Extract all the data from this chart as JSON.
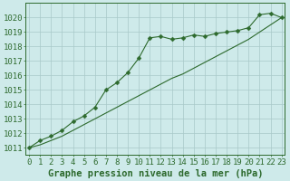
{
  "x": [
    0,
    1,
    2,
    3,
    4,
    5,
    6,
    7,
    8,
    9,
    10,
    11,
    12,
    13,
    14,
    15,
    16,
    17,
    18,
    19,
    20,
    21,
    22,
    23
  ],
  "line1_marked": [
    1011.0,
    1011.5,
    1011.8,
    1012.2,
    1012.8,
    1013.2,
    1013.8,
    1015.0,
    1015.5,
    1016.2,
    1017.2,
    1018.6,
    1018.7,
    1018.5,
    1018.6,
    1018.8,
    1018.7,
    1018.9,
    1019.0,
    1019.1,
    1019.3,
    1020.2,
    1020.3,
    1020.0
  ],
  "line2_linear": [
    1011.0,
    1011.2,
    1011.5,
    1011.8,
    1012.2,
    1012.6,
    1013.0,
    1013.4,
    1013.8,
    1014.2,
    1014.6,
    1015.0,
    1015.4,
    1015.8,
    1016.1,
    1016.5,
    1016.9,
    1017.3,
    1017.7,
    1018.1,
    1018.5,
    1019.0,
    1019.5,
    1020.0
  ],
  "line_color": "#2d6a2d",
  "marker": "D",
  "markersize": 2.5,
  "bg_color": "#ceeaea",
  "grid_color": "#a8c8c8",
  "ylabel_vals": [
    1011,
    1012,
    1013,
    1014,
    1015,
    1016,
    1017,
    1018,
    1019,
    1020
  ],
  "ylim": [
    1010.5,
    1021.0
  ],
  "xlim": [
    -0.3,
    23.3
  ],
  "xlabel": "Graphe pression niveau de la mer (hPa)",
  "label_fontsize": 7.5,
  "tick_fontsize": 6.5
}
